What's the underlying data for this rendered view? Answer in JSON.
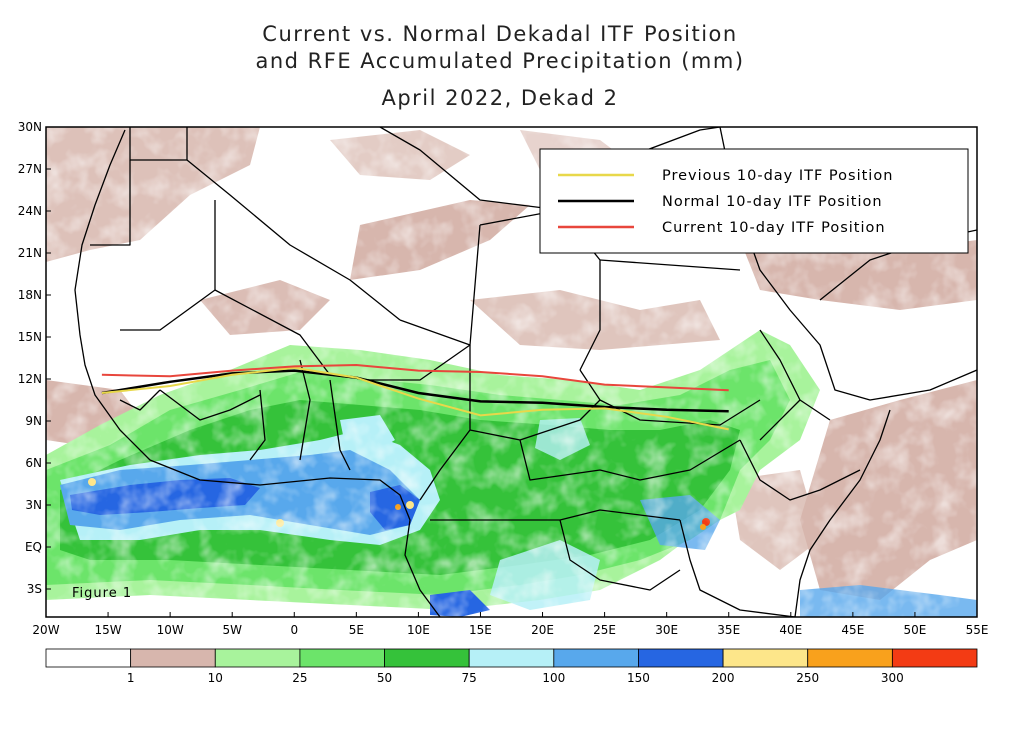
{
  "title": {
    "line1": "Current vs. Normal Dekadal ITF Position",
    "line2": "and RFE Accumulated Precipitation (mm)",
    "line3": "April 2022, Dekad 2"
  },
  "figure_label": "Figure 1",
  "legend": {
    "previous": {
      "label": "Previous 10-day ITF Position",
      "color": "#e8d84a"
    },
    "normal": {
      "label": "Normal 10-day ITF Position",
      "color": "#000000"
    },
    "current": {
      "label": "Current 10-day ITF Position",
      "color": "#e8463c"
    }
  },
  "lat_labels": [
    "30N",
    "27N",
    "24N",
    "21N",
    "18N",
    "15N",
    "12N",
    "9N",
    "6N",
    "3N",
    "EQ",
    "3S"
  ],
  "lon_labels": [
    "20W",
    "15W",
    "10W",
    "5W",
    "0",
    "5E",
    "10E",
    "15E",
    "20E",
    "25E",
    "30E",
    "35E",
    "40E",
    "45E",
    "50E",
    "55E"
  ],
  "colorbar": {
    "colors": [
      "#ffffff",
      "#d7b6ad",
      "#a8f39c",
      "#6ce46a",
      "#35c23a",
      "#b6f0f7",
      "#58a8ec",
      "#2666e2",
      "#fde68a",
      "#f9a11c",
      "#f33b14"
    ],
    "tick_labels": [
      "1",
      "10",
      "25",
      "50",
      "75",
      "100",
      "150",
      "200",
      "250",
      "300"
    ]
  },
  "itf_lines": {
    "previous": [
      [
        -15.5,
        11.0
      ],
      [
        -10,
        11.5
      ],
      [
        -5,
        12.3
      ],
      [
        0,
        12.8
      ],
      [
        5,
        12.1
      ],
      [
        10,
        10.6
      ],
      [
        15,
        9.4
      ],
      [
        20,
        9.8
      ],
      [
        25,
        9.9
      ],
      [
        30,
        9.3
      ],
      [
        35,
        8.4
      ]
    ],
    "normal": [
      [
        -15.5,
        11.0
      ],
      [
        -10,
        11.8
      ],
      [
        -5,
        12.4
      ],
      [
        0,
        12.6
      ],
      [
        5,
        12.1
      ],
      [
        10,
        11.0
      ],
      [
        15,
        10.4
      ],
      [
        20,
        10.3
      ],
      [
        25,
        10.0
      ],
      [
        30,
        9.8
      ],
      [
        35,
        9.7
      ]
    ],
    "current": [
      [
        -15.5,
        12.3
      ],
      [
        -10,
        12.2
      ],
      [
        -5,
        12.6
      ],
      [
        0,
        12.9
      ],
      [
        5,
        13.0
      ],
      [
        10,
        12.6
      ],
      [
        15,
        12.5
      ],
      [
        20,
        12.2
      ],
      [
        25,
        11.6
      ],
      [
        30,
        11.4
      ],
      [
        35,
        11.2
      ]
    ]
  }
}
